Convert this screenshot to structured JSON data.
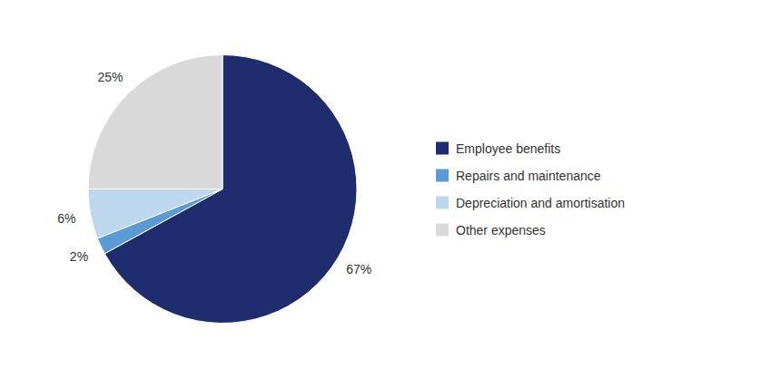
{
  "chart_data": {
    "type": "pie",
    "categories": [
      "Employee benefits",
      "Repairs and maintenance",
      "Depreciation and amortisation",
      "Other expenses"
    ],
    "values": [
      67,
      2,
      6,
      25
    ],
    "value_labels": [
      "67%",
      "2%",
      "6%",
      "25%"
    ],
    "colors": [
      "#1f2d6e",
      "#5b9bd5",
      "#bdd7ee",
      "#d9d9d9"
    ],
    "data_labels": true,
    "legend": "right"
  }
}
